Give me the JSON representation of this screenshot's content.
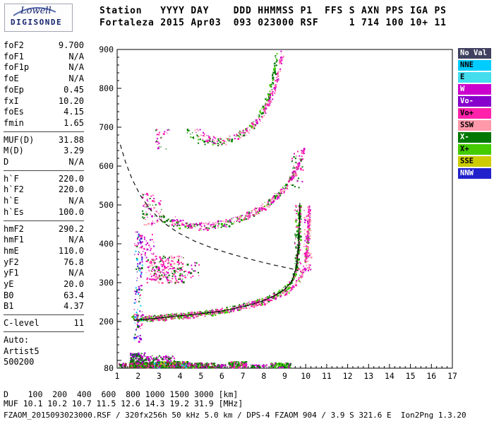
{
  "logo": {
    "company": "Lowell",
    "product": "DIGISONDE"
  },
  "header": {
    "line1": "Station   YYYY DAY    DDD HHMMSS P1  FFS S AXN PPS IGA PS",
    "line2": "Fortaleza 2015 Apr03  093 023000 RSF     1 714 100 10+ 11"
  },
  "params": {
    "groups": [
      {
        "rows": [
          [
            "foF2",
            "9.700"
          ],
          [
            "foF1",
            "N/A"
          ],
          [
            "foF1p",
            "N/A"
          ],
          [
            "foE",
            "N/A"
          ],
          [
            "foEp",
            "0.45"
          ],
          [
            "fxI",
            "10.20"
          ],
          [
            "foEs",
            "4.15"
          ],
          [
            "fmin",
            "1.65"
          ]
        ]
      },
      {
        "rows": [
          [
            "MUF(D)",
            "31.88"
          ],
          [
            "M(D)",
            "3.29"
          ],
          [
            "D",
            "N/A"
          ]
        ]
      },
      {
        "rows": [
          [
            "h`F",
            "220.0"
          ],
          [
            "h`F2",
            "220.0"
          ],
          [
            "h`E",
            "N/A"
          ],
          [
            "h`Es",
            "100.0"
          ]
        ]
      },
      {
        "rows": [
          [
            "hmF2",
            "290.2"
          ],
          [
            "hmF1",
            "N/A"
          ],
          [
            "hmE",
            "110.0"
          ],
          [
            "yF2",
            "76.8"
          ],
          [
            "yF1",
            "N/A"
          ],
          [
            "yE",
            "20.0"
          ],
          [
            "B0",
            "63.4"
          ],
          [
            "B1",
            "4.37"
          ]
        ]
      },
      {
        "rows": [
          [
            "C-level",
            "11"
          ]
        ]
      },
      {
        "rows": [
          [
            "Auto:",
            ""
          ],
          [
            "Artist5",
            ""
          ],
          [
            "500200",
            ""
          ]
        ],
        "no_rule": true
      }
    ]
  },
  "legend": {
    "items": [
      {
        "label": "No Val",
        "color": "#404060",
        "text": "#ffffff"
      },
      {
        "label": "NNE",
        "color": "#00ccff",
        "text": "#000000"
      },
      {
        "label": "E",
        "color": "#44ddee",
        "text": "#000000"
      },
      {
        "label": "W",
        "color": "#cc00cc",
        "text": "#ffffff"
      },
      {
        "label": "Vo-",
        "color": "#8800cc",
        "text": "#ffffff"
      },
      {
        "label": "Vo+",
        "color": "#ff22aa",
        "text": "#000000"
      },
      {
        "label": "SSW",
        "color": "#ff99aa",
        "text": "#000000"
      },
      {
        "label": "X-",
        "color": "#007700",
        "text": "#ffffff"
      },
      {
        "label": "X+",
        "color": "#44cc00",
        "text": "#000000"
      },
      {
        "label": "SSE",
        "color": "#cccc00",
        "text": "#000000"
      },
      {
        "label": "NNW",
        "color": "#2222cc",
        "text": "#ffffff"
      }
    ]
  },
  "bottom": {
    "d_label": "D",
    "d_values": [
      "100",
      "200",
      "400",
      "600",
      "800",
      "1000",
      "1500",
      "3000"
    ],
    "d_unit": "[km]",
    "muf_label": "MUF",
    "muf_values": [
      "10.1",
      "10.2",
      "10.7",
      "11.5",
      "12.6",
      "14.3",
      "19.2",
      "31.9"
    ],
    "muf_unit": "[MHz]",
    "footer": "FZAOM_2015093023000.RSF / 320fx256h 50 kHz 5.0 km / DPS-4 FZAOM 904 / 3.9 S 321.6 E  Ion2Png 1.3.20"
  },
  "chart_data": {
    "type": "scatter",
    "title": "Digisonde ionogram Fortaleza 2015-04-03 02:30:00",
    "xlabel": "[MHz]",
    "ylabel": "[km]",
    "xlim": [
      1,
      17
    ],
    "ylim": [
      80,
      900
    ],
    "x_ticks": [
      1,
      2,
      3,
      4,
      5,
      6,
      7,
      8,
      9,
      10,
      11,
      12,
      13,
      14,
      15,
      16,
      17
    ],
    "y_ticks": [
      900,
      800,
      700,
      600,
      500,
      400,
      300,
      200,
      80
    ],
    "grid": false,
    "legend_position": "right",
    "traces": [
      {
        "name": "f-trace-1st-order-o",
        "colors": [
          "#007700",
          "#007700",
          "#44cc00",
          "#ff22aa"
        ],
        "jx": 0.05,
        "jy": 7,
        "density": 3,
        "gap": 0.3,
        "pts": [
          [
            1.7,
            214
          ],
          [
            2.0,
            210
          ],
          [
            2.5,
            209
          ],
          [
            3.0,
            212
          ],
          [
            3.6,
            215
          ],
          [
            4.2,
            218
          ],
          [
            4.8,
            221
          ],
          [
            5.4,
            225
          ],
          [
            6.0,
            230
          ],
          [
            6.6,
            236
          ],
          [
            7.2,
            244
          ],
          [
            7.8,
            253
          ],
          [
            8.3,
            263
          ],
          [
            8.8,
            277
          ],
          [
            9.15,
            293
          ],
          [
            9.4,
            315
          ],
          [
            9.55,
            345
          ],
          [
            9.63,
            395
          ],
          [
            9.67,
            450
          ],
          [
            9.69,
            495
          ]
        ]
      },
      {
        "name": "f-trace-1st-order-x",
        "colors": [
          "#ff22aa",
          "#ff22aa",
          "#ff99aa",
          "#cc00cc",
          "#44cc00"
        ],
        "jx": 0.05,
        "jy": 7,
        "density": 3,
        "gap": 0.3,
        "pts": [
          [
            2.2,
            212
          ],
          [
            2.6,
            209
          ],
          [
            3.2,
            210
          ],
          [
            3.8,
            213
          ],
          [
            4.4,
            216
          ],
          [
            5.0,
            220
          ],
          [
            5.6,
            224
          ],
          [
            6.2,
            229
          ],
          [
            6.8,
            236
          ],
          [
            7.4,
            244
          ],
          [
            8.0,
            253
          ],
          [
            8.5,
            263
          ],
          [
            9.0,
            276
          ],
          [
            9.4,
            291
          ],
          [
            9.7,
            311
          ],
          [
            9.9,
            338
          ],
          [
            10.02,
            378
          ],
          [
            10.1,
            440
          ],
          [
            10.14,
            492
          ]
        ]
      },
      {
        "name": "f-trace-2nd-order-o",
        "colors": [
          "#007700",
          "#44cc00",
          "#007700",
          "#ff22aa"
        ],
        "jx": 0.06,
        "jy": 9,
        "density": 2,
        "gap": 0.35,
        "pts": [
          [
            3.05,
            470
          ],
          [
            3.4,
            458
          ],
          [
            3.9,
            450
          ],
          [
            4.5,
            446
          ],
          [
            5.1,
            445
          ],
          [
            5.7,
            449
          ],
          [
            6.3,
            456
          ],
          [
            6.9,
            467
          ],
          [
            7.5,
            482
          ],
          [
            8.0,
            499
          ],
          [
            8.5,
            519
          ],
          [
            8.95,
            545
          ],
          [
            9.3,
            575
          ],
          [
            9.5,
            605
          ]
        ]
      },
      {
        "name": "f-trace-2nd-order-x",
        "colors": [
          "#ff22aa",
          "#ff99aa",
          "#cc00cc"
        ],
        "jx": 0.06,
        "jy": 9,
        "density": 2,
        "gap": 0.4,
        "pts": [
          [
            3.55,
            466
          ],
          [
            3.95,
            455
          ],
          [
            4.45,
            449
          ],
          [
            5.05,
            447
          ],
          [
            5.65,
            450
          ],
          [
            6.25,
            457
          ],
          [
            6.85,
            468
          ],
          [
            7.45,
            482
          ],
          [
            8.0,
            498
          ],
          [
            8.55,
            520
          ],
          [
            9.05,
            548
          ],
          [
            9.45,
            582
          ],
          [
            9.75,
            625
          ],
          [
            9.9,
            645
          ]
        ]
      },
      {
        "name": "f-trace-3rd-order-o",
        "colors": [
          "#007700",
          "#44cc00",
          "#007700"
        ],
        "jx": 0.07,
        "jy": 10,
        "density": 2,
        "gap": 0.42,
        "pts": [
          [
            4.25,
            692
          ],
          [
            4.6,
            678
          ],
          [
            5.0,
            668
          ],
          [
            5.5,
            663
          ],
          [
            6.0,
            665
          ],
          [
            6.5,
            672
          ],
          [
            6.95,
            684
          ],
          [
            7.35,
            700
          ],
          [
            7.7,
            722
          ],
          [
            8.0,
            752
          ],
          [
            8.25,
            790
          ],
          [
            8.45,
            838
          ],
          [
            8.6,
            890
          ]
        ]
      },
      {
        "name": "f-trace-3rd-order-x",
        "colors": [
          "#ff22aa",
          "#ff99aa",
          "#cc00cc",
          "#ff22aa"
        ],
        "jx": 0.07,
        "jy": 10,
        "density": 2,
        "gap": 0.45,
        "pts": [
          [
            4.75,
            690
          ],
          [
            5.15,
            676
          ],
          [
            5.6,
            667
          ],
          [
            6.1,
            666
          ],
          [
            6.6,
            673
          ],
          [
            7.05,
            686
          ],
          [
            7.45,
            703
          ],
          [
            7.85,
            728
          ],
          [
            8.2,
            762
          ],
          [
            8.5,
            805
          ],
          [
            8.75,
            858
          ],
          [
            8.88,
            898
          ]
        ]
      }
    ],
    "clusters": [
      {
        "name": "es-band",
        "x": [
          1.55,
          2.65
        ],
        "y": [
          82,
          97
        ],
        "n": 420,
        "colors": [
          "#007700",
          "#44cc00",
          "#cc00cc",
          "#992233",
          "#007700",
          "#ff22aa"
        ]
      },
      {
        "name": "es-band-upper-left",
        "x": [
          1.6,
          2.3
        ],
        "y": [
          97,
          121
        ],
        "n": 110,
        "colors": [
          "#007700",
          "#cc00cc",
          "#007700",
          "#8800cc"
        ]
      },
      {
        "name": "es-band-2",
        "x": [
          2.65,
          4.35
        ],
        "y": [
          82,
          99
        ],
        "n": 400,
        "colors": [
          "#007700",
          "#44cc00",
          "#cc00cc",
          "#007700",
          "#ff22aa",
          "#cccc00",
          "#00ccff",
          "#992233"
        ]
      },
      {
        "name": "es-band-2-upper",
        "x": [
          2.0,
          3.7
        ],
        "y": [
          99,
          114
        ],
        "n": 80,
        "colors": [
          "#007700",
          "#cc00cc"
        ]
      },
      {
        "name": "es-band-3",
        "x": [
          4.35,
          5.65
        ],
        "y": [
          82,
          95
        ],
        "n": 170,
        "colors": [
          "#007700",
          "#44cc00",
          "#cc00cc",
          "#992233"
        ]
      },
      {
        "name": "es-band-4",
        "x": [
          5.7,
          6.15
        ],
        "y": [
          82,
          91
        ],
        "n": 40,
        "colors": [
          "#007700",
          "#cc00cc"
        ]
      },
      {
        "name": "es-band-5",
        "x": [
          6.3,
          7.15
        ],
        "y": [
          82,
          98
        ],
        "n": 150,
        "colors": [
          "#007700",
          "#44cc00",
          "#cc00cc",
          "#ff22aa"
        ]
      },
      {
        "name": "es-band-6",
        "x": [
          7.35,
          8.15
        ],
        "y": [
          82,
          90
        ],
        "n": 40,
        "colors": [
          "#007700",
          "#cc00cc"
        ]
      },
      {
        "name": "es-band-7",
        "x": [
          8.3,
          9.25
        ],
        "y": [
          82,
          95
        ],
        "n": 130,
        "colors": [
          "#007700",
          "#44cc00",
          "#cc00cc"
        ]
      },
      {
        "name": "es-band-left-edge",
        "x": [
          1.02,
          1.4
        ],
        "y": [
          82,
          94
        ],
        "n": 35,
        "colors": [
          "#007700",
          "#cc00cc",
          "#992233"
        ]
      },
      {
        "name": "vertical-spread",
        "x": [
          1.78,
          2.18
        ],
        "y": [
          150,
          432
        ],
        "n": 120,
        "colors": [
          "#cc00cc",
          "#007700",
          "#2222cc",
          "#8800cc",
          "#00ccff",
          "#ff22aa"
        ]
      },
      {
        "name": "oblique-spread-f",
        "x": [
          2.35,
          4.15
        ],
        "y": [
          300,
          370
        ],
        "n": 250,
        "colors": [
          "#ff22aa",
          "#cc00cc",
          "#ff99aa",
          "#007700",
          "#ff22aa"
        ]
      },
      {
        "name": "oblique-spread-f2",
        "x": [
          4.15,
          4.9
        ],
        "y": [
          315,
          355
        ],
        "n": 25,
        "colors": [
          "#ff22aa",
          "#007700",
          "#cc00cc"
        ]
      },
      {
        "name": "spread-above",
        "x": [
          2.0,
          2.75
        ],
        "y": [
          370,
          428
        ],
        "n": 40,
        "colors": [
          "#cc00cc",
          "#8800cc",
          "#ff22aa"
        ]
      },
      {
        "name": "second-hop-left",
        "x": [
          2.15,
          3.1
        ],
        "y": [
          448,
          532
        ],
        "n": 75,
        "colors": [
          "#ff22aa",
          "#cc00cc",
          "#007700",
          "#ff99aa"
        ]
      },
      {
        "name": "third-hop-left",
        "x": [
          2.8,
          3.5
        ],
        "y": [
          645,
          700
        ],
        "n": 24,
        "colors": [
          "#007700",
          "#ff22aa",
          "#cc00cc"
        ]
      },
      {
        "name": "riser-o",
        "x": [
          9.45,
          9.75
        ],
        "y": [
          320,
          500
        ],
        "n": 80,
        "colors": [
          "#007700",
          "#44cc00",
          "#ff22aa"
        ]
      },
      {
        "name": "riser-x",
        "x": [
          9.9,
          10.22
        ],
        "y": [
          330,
          500
        ],
        "n": 70,
        "colors": [
          "#ff22aa",
          "#ff99aa",
          "#cc00cc"
        ]
      },
      {
        "name": "riser-2nd",
        "x": [
          9.3,
          9.85
        ],
        "y": [
          545,
          645
        ],
        "n": 45,
        "colors": [
          "#ff22aa",
          "#cc00cc",
          "#007700"
        ]
      }
    ],
    "curves": [
      {
        "name": "transmission-curve",
        "style": "dashed",
        "pts": [
          [
            1.15,
            655
          ],
          [
            1.4,
            610
          ],
          [
            1.7,
            568
          ],
          [
            2.1,
            525
          ],
          [
            2.6,
            487
          ],
          [
            3.2,
            455
          ],
          [
            3.9,
            429
          ],
          [
            4.7,
            407
          ],
          [
            5.5,
            390
          ],
          [
            6.3,
            376
          ],
          [
            7.1,
            364
          ],
          [
            7.9,
            353
          ],
          [
            8.7,
            343
          ],
          [
            9.3,
            336
          ],
          [
            9.65,
            331
          ]
        ]
      },
      {
        "name": "true-height-profile",
        "style": "solid",
        "pts": [
          [
            1.8,
            203
          ],
          [
            2.4,
            206
          ],
          [
            3.2,
            210
          ],
          [
            4.0,
            215
          ],
          [
            4.8,
            219
          ],
          [
            5.6,
            224
          ],
          [
            6.4,
            231
          ],
          [
            7.2,
            241
          ],
          [
            7.9,
            252
          ],
          [
            8.5,
            266
          ],
          [
            9.0,
            283
          ],
          [
            9.35,
            305
          ],
          [
            9.55,
            338
          ],
          [
            9.65,
            390
          ],
          [
            9.7,
            450
          ],
          [
            9.72,
            505
          ]
        ]
      }
    ]
  }
}
